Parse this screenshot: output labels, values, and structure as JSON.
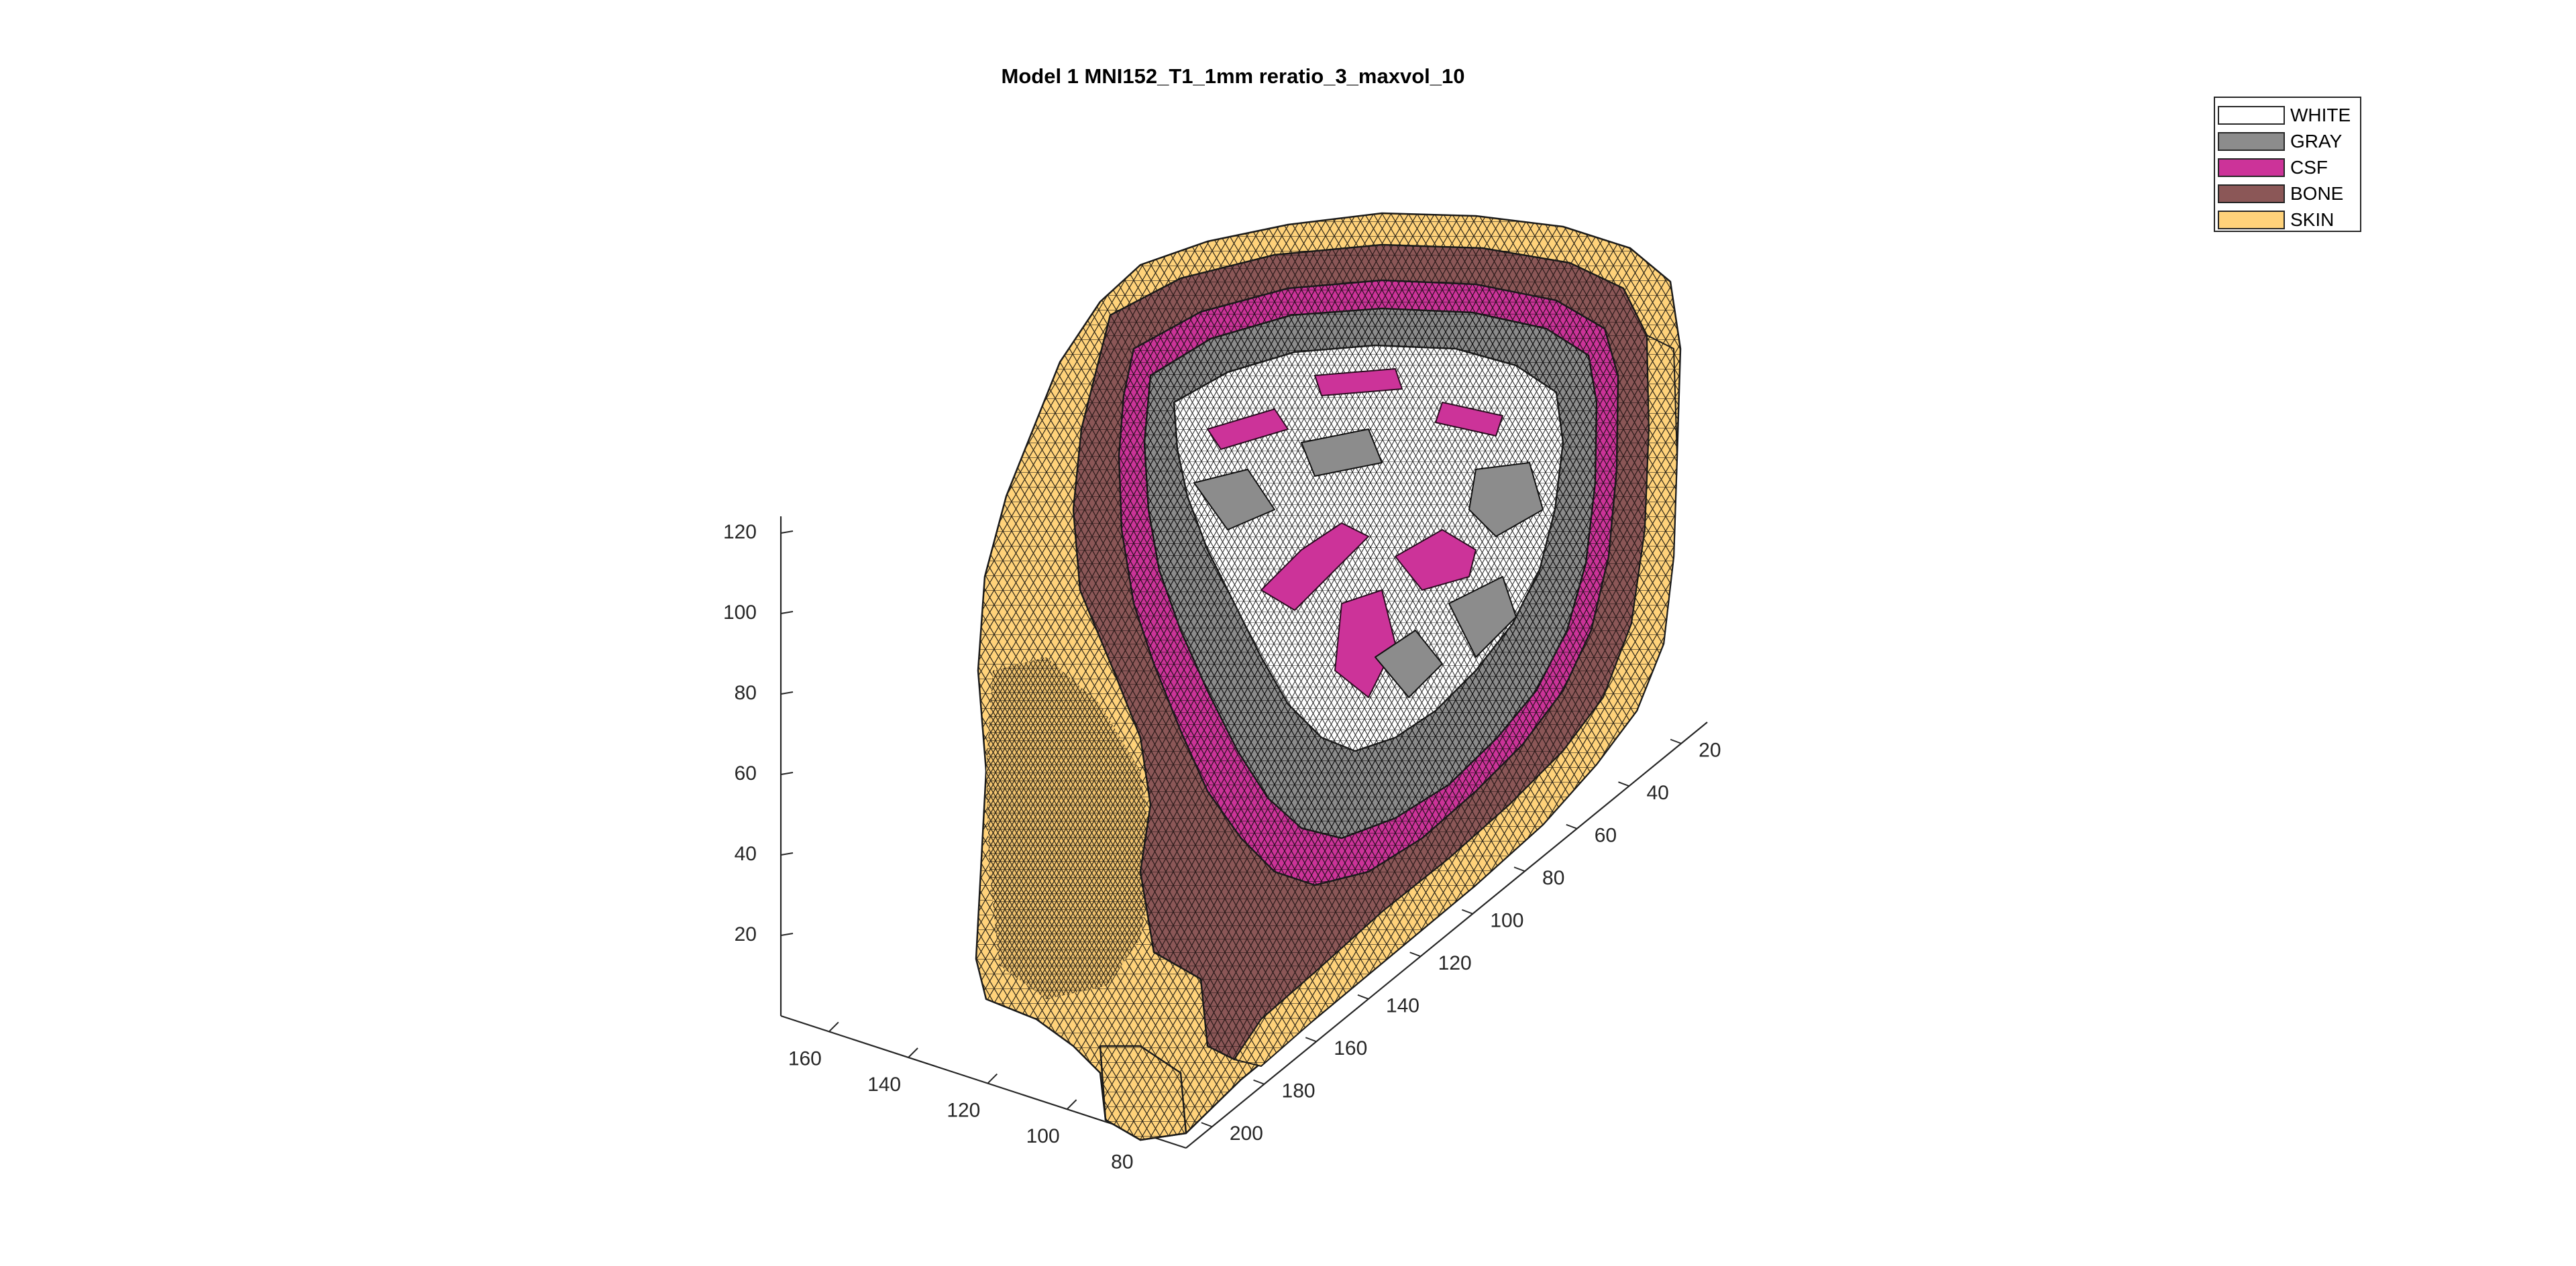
{
  "chart_data": {
    "type": "3d-mesh",
    "title": "Model 1  MNI152_T1_1mm  reratio_3_maxvol_10",
    "legend": {
      "placement": "top-right",
      "entries": [
        {
          "label": "WHITE",
          "color": "#ffffff"
        },
        {
          "label": "GRAY",
          "color": "#8c8c8c"
        },
        {
          "label": "CSF",
          "color": "#cc3399"
        },
        {
          "label": "BONE",
          "color": "#8b5757"
        },
        {
          "label": "SKIN",
          "color": "#ffd27a"
        }
      ]
    },
    "axes": {
      "z_ticks": [
        20,
        40,
        60,
        80,
        100,
        120
      ],
      "x_ticks": [
        80,
        100,
        120,
        140,
        160
      ],
      "y_ticks": [
        20,
        40,
        60,
        80,
        100,
        120,
        140,
        160,
        180,
        200
      ]
    },
    "grid": false
  }
}
